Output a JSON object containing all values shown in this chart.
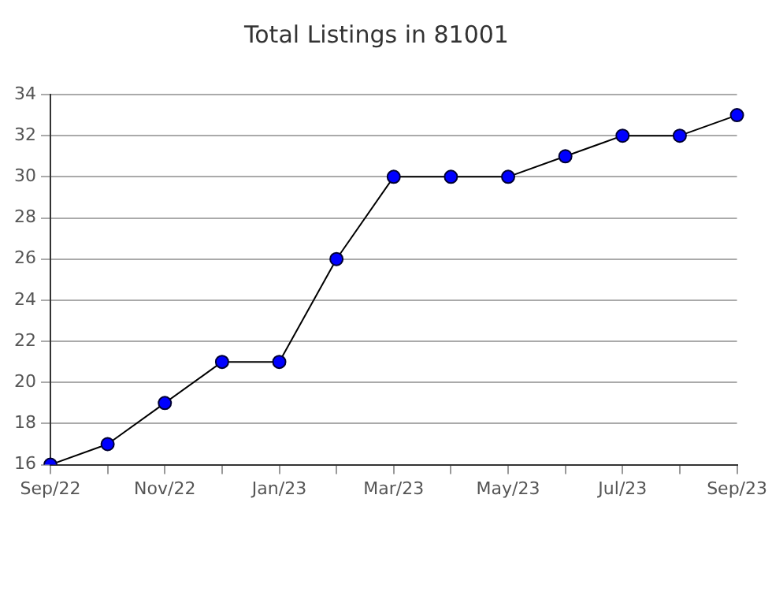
{
  "chart_data": {
    "type": "line",
    "title": "Total Listings in 81001",
    "categories": [
      "Sep/22",
      null,
      "Nov/22",
      null,
      "Jan/23",
      null,
      "Mar/23",
      null,
      "May/23",
      null,
      "Jul/23",
      null,
      "Sep/23"
    ],
    "series": [
      {
        "color": "#0000ff",
        "values": [
          16,
          17,
          19,
          21,
          21,
          26,
          30,
          30,
          30,
          31,
          32,
          32,
          33
        ]
      }
    ],
    "ylim": [
      16,
      34
    ],
    "yticks": [
      16,
      18,
      20,
      22,
      24,
      26,
      28,
      30,
      32,
      34
    ],
    "grid": "y",
    "legend": false,
    "marker": "circle",
    "line_style": "solid"
  }
}
